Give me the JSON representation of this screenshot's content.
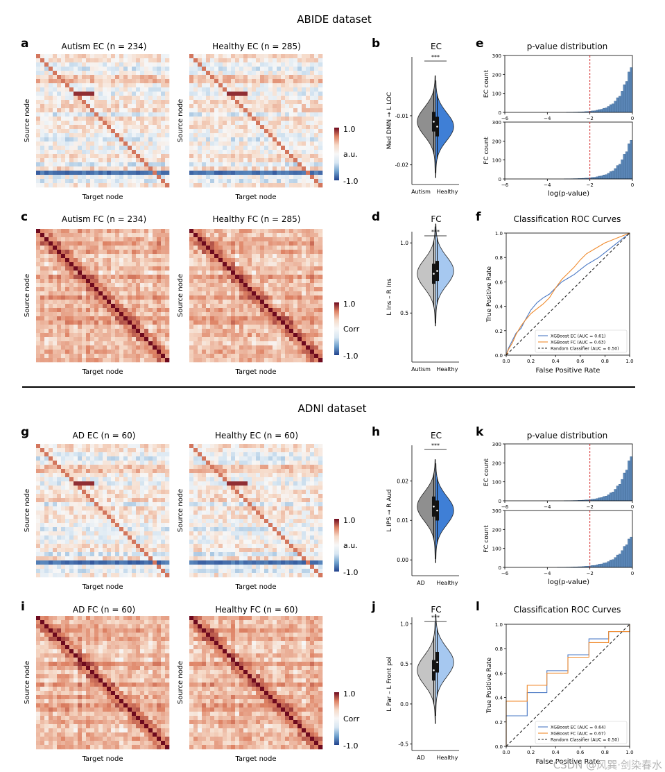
{
  "sections": [
    {
      "title": "ABIDE dataset"
    },
    {
      "title": "ADNI dataset"
    }
  ],
  "colors": {
    "ec_blue": "#4a78c4",
    "fc_orange": "#f08a2c",
    "hist_blue": "#5b87b8",
    "violin_group1": "#8f8f8f",
    "violin_group1_light": "#c4c4c4",
    "violin_ec_healthy": "#3f7fd6",
    "violin_fc_healthy": "#a6c8f0",
    "red_line": "#d62728"
  },
  "chart_data": [
    {
      "panel": "a",
      "type": "heatmap",
      "title": "Autism EC (n = 234)",
      "xlabel": "Target node",
      "ylabel": "Source node",
      "kind": "EC",
      "seed": 11
    },
    {
      "panel": "",
      "type": "heatmap",
      "title": "Healthy EC (n = 285)",
      "xlabel": "Target node",
      "ylabel": "Source node",
      "kind": "EC",
      "seed": 12,
      "colorbar": {
        "label": "a.u.",
        "max_label": "1.0",
        "min_label": "-1.0"
      }
    },
    {
      "panel": "b",
      "type": "violin",
      "title": "EC",
      "ylabel": "Med DMN → L LOC",
      "categories": [
        "Autism",
        "Healthy"
      ],
      "ylim": [
        -0.024,
        0.002
      ],
      "yticks": [
        -0.01,
        -0.02
      ],
      "ytick_labels": [
        "-0.01",
        "-0.02"
      ],
      "significance": "***",
      "medians": [
        -0.0112,
        -0.0122
      ],
      "colors": [
        "#8f8f8f",
        "#3f7fd6"
      ]
    },
    {
      "panel": "e",
      "type": "histogram",
      "title": "p-value distribution",
      "xlabel": "log(p-value)",
      "xlim": [
        -6,
        0
      ],
      "xticks": [
        -6,
        -4,
        -2,
        0
      ],
      "xtick_labels": [
        "−6",
        "−4",
        "−2",
        "0"
      ],
      "threshold": -2,
      "subplots": [
        {
          "ylabel": "EC count",
          "ylim": [
            0,
            300
          ],
          "yticks": [
            0,
            100,
            200,
            300
          ],
          "peak": 285,
          "rate": 1.95
        },
        {
          "ylabel": "FC count",
          "ylim": [
            0,
            300
          ],
          "yticks": [
            0,
            100,
            200,
            300
          ],
          "peak": 245,
          "rate": 1.85
        }
      ]
    },
    {
      "panel": "c",
      "type": "heatmap",
      "title": "Autism FC (n = 234)",
      "xlabel": "Target node",
      "ylabel": "Source node",
      "kind": "FC",
      "seed": 21
    },
    {
      "panel": "",
      "type": "heatmap",
      "title": "Healthy FC (n = 285)",
      "xlabel": "Target node",
      "ylabel": "Source node",
      "kind": "FC",
      "seed": 22,
      "colorbar": {
        "label": "Corr",
        "max_label": "1.0",
        "min_label": "-1.0"
      }
    },
    {
      "panel": "d",
      "type": "violin",
      "title": "FC",
      "ylabel": "L Ins – R Ins",
      "categories": [
        "Autism",
        "Healthy"
      ],
      "ylim": [
        0.15,
        1.08
      ],
      "yticks": [
        1.0,
        0.5
      ],
      "ytick_labels": [
        "1.0",
        "0.5"
      ],
      "significance": "***",
      "medians": [
        0.78,
        0.8
      ],
      "colors": [
        "#c4c4c4",
        "#a6c8f0"
      ]
    },
    {
      "panel": "f",
      "type": "line",
      "title": "Classification ROC Curves",
      "xlabel": "False Positive Rate",
      "ylabel": "True Positive Rate",
      "xlim": [
        0,
        1
      ],
      "ylim": [
        0,
        1
      ],
      "ticks": [
        0,
        0.2,
        0.4,
        0.6,
        0.8,
        1.0
      ],
      "tick_labels": [
        "0.0",
        "0.2",
        "0.4",
        "0.6",
        "0.8",
        "1.0"
      ],
      "series": [
        {
          "name": "XGBoost EC (AUC = 0.61)",
          "color": "#4a78c4",
          "x": [
            0,
            0.02,
            0.05,
            0.08,
            0.12,
            0.15,
            0.2,
            0.25,
            0.3,
            0.35,
            0.4,
            0.45,
            0.5,
            0.55,
            0.6,
            0.65,
            0.7,
            0.75,
            0.8,
            0.85,
            0.9,
            0.95,
            1.0
          ],
          "y": [
            0,
            0.06,
            0.12,
            0.18,
            0.22,
            0.28,
            0.37,
            0.43,
            0.47,
            0.5,
            0.55,
            0.6,
            0.63,
            0.66,
            0.7,
            0.74,
            0.77,
            0.8,
            0.84,
            0.88,
            0.92,
            0.96,
            1.0
          ]
        },
        {
          "name": "XGBoost FC (AUC = 0.63)",
          "color": "#f08a2c",
          "x": [
            0,
            0.02,
            0.05,
            0.08,
            0.12,
            0.15,
            0.2,
            0.25,
            0.3,
            0.35,
            0.4,
            0.45,
            0.5,
            0.55,
            0.6,
            0.65,
            0.7,
            0.75,
            0.8,
            0.85,
            0.9,
            0.95,
            1.0
          ],
          "y": [
            0,
            0.05,
            0.1,
            0.17,
            0.24,
            0.28,
            0.34,
            0.38,
            0.42,
            0.47,
            0.55,
            0.62,
            0.67,
            0.72,
            0.78,
            0.83,
            0.86,
            0.89,
            0.92,
            0.94,
            0.96,
            0.98,
            1.0
          ]
        },
        {
          "name": "Random Classifier (AUC = 0.50)",
          "color": "#222222",
          "dashed": true,
          "x": [
            0,
            1
          ],
          "y": [
            0,
            1
          ]
        }
      ]
    },
    {
      "panel": "g",
      "type": "heatmap",
      "title": "AD EC (n = 60)",
      "xlabel": "Target node",
      "ylabel": "Source node",
      "kind": "EC",
      "seed": 31
    },
    {
      "panel": "",
      "type": "heatmap",
      "title": "Healthy EC (n = 60)",
      "xlabel": "Target node",
      "ylabel": "Source node",
      "kind": "EC",
      "seed": 32,
      "colorbar": {
        "label": "a.u.",
        "max_label": "1.0",
        "min_label": "-1.0"
      }
    },
    {
      "panel": "h",
      "type": "violin",
      "title": "EC",
      "ylabel": "L IPS → R Aud",
      "categories": [
        "AD",
        "Healthy"
      ],
      "ylim": [
        -0.004,
        0.029
      ],
      "yticks": [
        0.02,
        0.01,
        0.0
      ],
      "ytick_labels": [
        "0.02",
        "0.01",
        "0.00"
      ],
      "significance": "***",
      "medians": [
        0.0135,
        0.0125
      ],
      "colors": [
        "#8f8f8f",
        "#3f7fd6"
      ]
    },
    {
      "panel": "k",
      "type": "histogram",
      "title": "p-value distribution",
      "xlabel": "log(p-value)",
      "xlim": [
        -6,
        0
      ],
      "xticks": [
        -6,
        -4,
        -2,
        0
      ],
      "xtick_labels": [
        "−6",
        "−4",
        "−2",
        "0"
      ],
      "threshold": -2,
      "subplots": [
        {
          "ylabel": "EC count",
          "ylim": [
            0,
            300
          ],
          "yticks": [
            0,
            100,
            200,
            300
          ],
          "peak": 280,
          "rate": 1.9
        },
        {
          "ylabel": "FC count",
          "ylim": [
            0,
            300
          ],
          "yticks": [
            0,
            100,
            200,
            300
          ],
          "peak": 190,
          "rate": 1.6
        }
      ]
    },
    {
      "panel": "i",
      "type": "heatmap",
      "title": "AD FC (n = 60)",
      "xlabel": "Target node",
      "ylabel": "Source node",
      "kind": "FC",
      "seed": 41
    },
    {
      "panel": "",
      "type": "heatmap",
      "title": "Healthy FC (n = 60)",
      "xlabel": "Target node",
      "ylabel": "Source node",
      "kind": "FC",
      "seed": 42,
      "colorbar": {
        "label": "Corr",
        "max_label": "1.0",
        "min_label": "-1.0"
      }
    },
    {
      "panel": "j",
      "type": "violin",
      "title": "FC",
      "ylabel": "L Par – L Front pol",
      "categories": [
        "AD",
        "Healthy"
      ],
      "ylim": [
        -0.58,
        1.08
      ],
      "yticks": [
        1.0,
        0.5,
        0.0,
        -0.5
      ],
      "ytick_labels": [
        "1.0",
        "0.5",
        "0.0",
        "-0.5"
      ],
      "significance": "***",
      "medians": [
        0.42,
        0.52
      ],
      "colors": [
        "#c4c4c4",
        "#a6c8f0"
      ]
    },
    {
      "panel": "l",
      "type": "line",
      "title": "Classification ROC Curves",
      "xlabel": "False Positive Rate",
      "ylabel": "True Positive Rate",
      "xlim": [
        0,
        1
      ],
      "ylim": [
        0,
        1
      ],
      "ticks": [
        0,
        0.2,
        0.4,
        0.6,
        0.8,
        1.0
      ],
      "tick_labels": [
        "0.0",
        "0.2",
        "0.4",
        "0.6",
        "0.8",
        "1.0"
      ],
      "series": [
        {
          "name": "XGBoost EC (AUC = 0.64)",
          "color": "#4a78c4",
          "step": true,
          "x": [
            0,
            0.0,
            0.0,
            0.17,
            0.17,
            0.33,
            0.33,
            0.5,
            0.5,
            0.67,
            0.67,
            0.83,
            0.83,
            1.0,
            1.0
          ],
          "y": [
            0,
            0.0,
            0.25,
            0.25,
            0.44,
            0.44,
            0.62,
            0.62,
            0.75,
            0.75,
            0.88,
            0.88,
            0.94,
            0.94,
            1.0
          ]
        },
        {
          "name": "XGBoost FC (AUC = 0.67)",
          "color": "#f08a2c",
          "step": true,
          "x": [
            0,
            0.0,
            0.0,
            0.17,
            0.17,
            0.33,
            0.33,
            0.5,
            0.5,
            0.67,
            0.67,
            0.83,
            0.83,
            1.0,
            1.0
          ],
          "y": [
            0,
            0.0,
            0.37,
            0.37,
            0.5,
            0.5,
            0.6,
            0.6,
            0.73,
            0.73,
            0.85,
            0.85,
            0.94,
            0.94,
            1.0
          ]
        },
        {
          "name": "Random Classifier (AUC = 0.50)",
          "color": "#222222",
          "dashed": true,
          "x": [
            0,
            1
          ],
          "y": [
            0,
            1
          ]
        }
      ]
    }
  ],
  "watermark": "CSDN @风巽·剑染春水"
}
